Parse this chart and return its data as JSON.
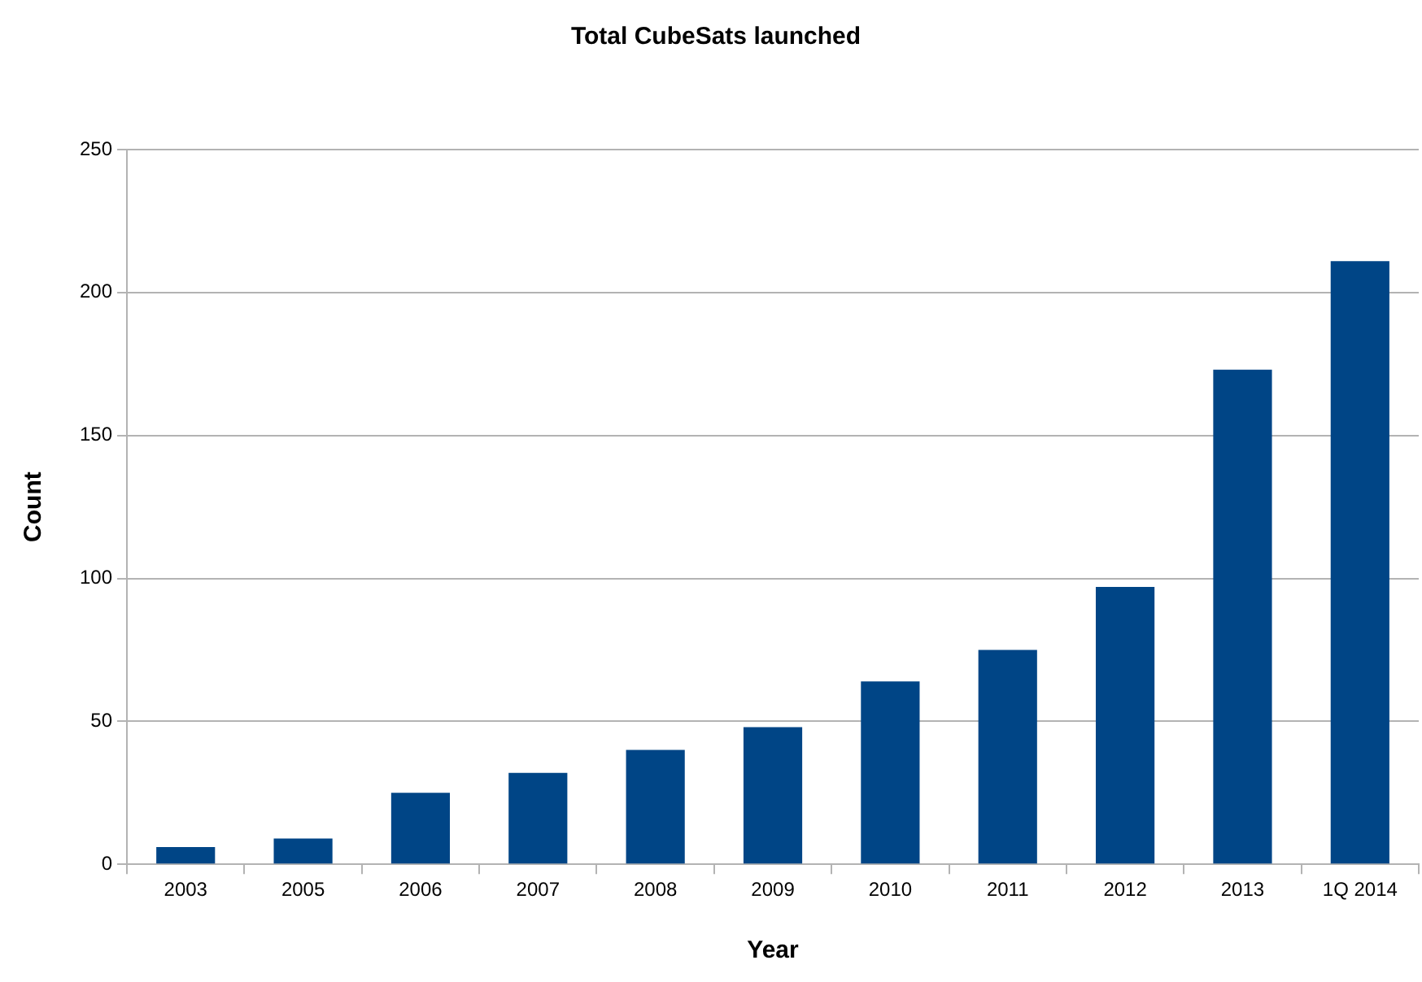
{
  "chart_data": {
    "type": "bar",
    "title": "Total CubeSats launched",
    "xlabel": "Year",
    "ylabel": "Count",
    "categories": [
      "2003",
      "2005",
      "2006",
      "2007",
      "2008",
      "2009",
      "2010",
      "2011",
      "2012",
      "2013",
      "1Q 2014"
    ],
    "values": [
      6,
      9,
      25,
      32,
      40,
      48,
      64,
      75,
      97,
      173,
      211
    ],
    "color": "#004586",
    "ylim": [
      0,
      250
    ],
    "yticks": [
      0,
      50,
      100,
      150,
      200,
      250
    ],
    "grid": "y"
  }
}
